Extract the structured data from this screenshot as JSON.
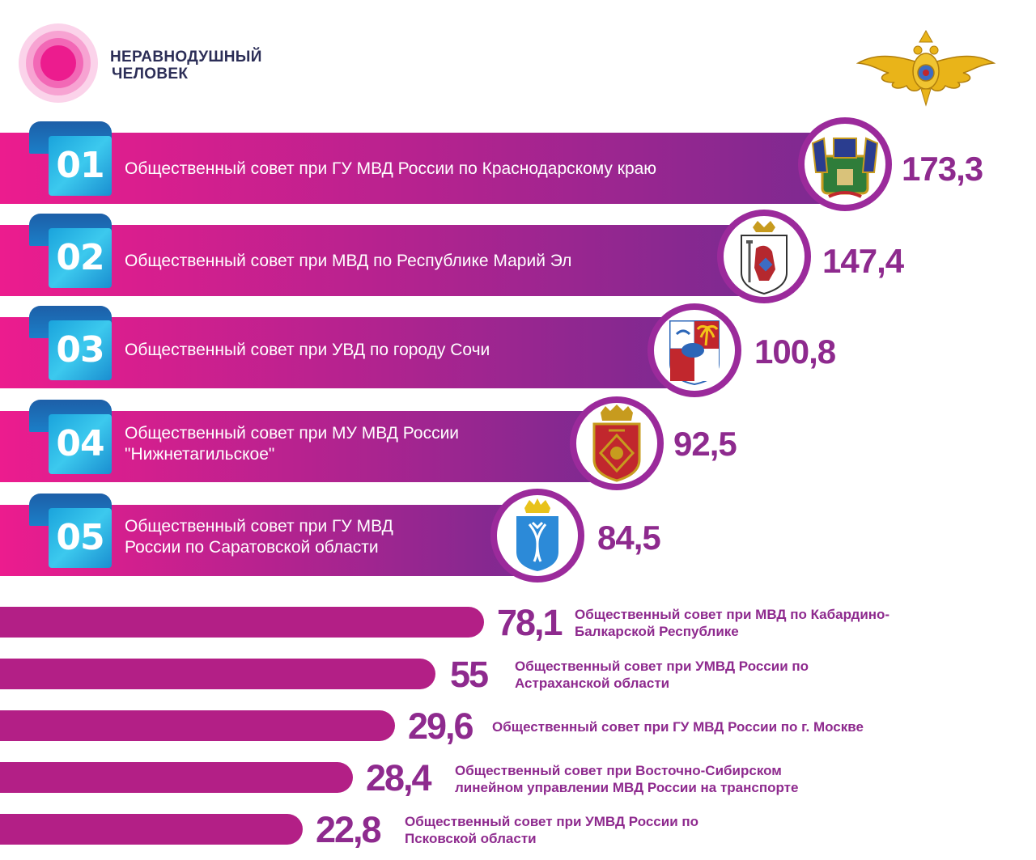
{
  "brand": {
    "line1": "НЕРАВНОДУШНЫЙ",
    "line2": "ЧЕЛОВЕК",
    "accent": "#ec1c8e"
  },
  "colors": {
    "primary_pink": "#ec1c8e",
    "primary_purple": "#8e2a8e",
    "bar_solid": "#b31f86",
    "number_box": "#2bb6e6"
  },
  "top_rows": [
    {
      "rank": "01",
      "label": "Общественный совет при ГУ МВД России по Краснодарскому краю",
      "value_text": "173,3",
      "icon": "krasnodar-coat-of-arms-icon"
    },
    {
      "rank": "02",
      "label": "Общественный совет при МВД по Республике Марий Эл",
      "value_text": "147,4",
      "icon": "mari-el-coat-of-arms-icon"
    },
    {
      "rank": "03",
      "label": "Общественный совет при УВД по городу Сочи",
      "value_text": "100,8",
      "icon": "sochi-coat-of-arms-icon"
    },
    {
      "rank": "04",
      "label_line1": "Общественный совет при МУ МВД России",
      "label_line2": "\"Нижнетагильское\"",
      "value_text": "92,5",
      "icon": "nizhny-tagil-coat-of-arms-icon"
    },
    {
      "rank": "05",
      "label_line1": "Общественный совет при ГУ МВД",
      "label_line2": "России по Саратовской области",
      "value_text": "84,5",
      "icon": "saratov-coat-of-arms-icon"
    }
  ],
  "bottom_rows": [
    {
      "value_text": "78,1",
      "label_line1": "Общественный совет при МВД по Кабардино-",
      "label_line2": "Балкарской Республике"
    },
    {
      "value_text": "55",
      "label_line1": "Общественный совет при УМВД России по",
      "label_line2": "Астраханской области"
    },
    {
      "value_text": "29,6",
      "label_line1": "Общественный совет при ГУ МВД России по г. Москве",
      "label_line2": ""
    },
    {
      "value_text": "28,4",
      "label_line1": "Общественный совет при Восточно-Сибирском",
      "label_line2": "линейном управлении МВД России на транспорте"
    },
    {
      "value_text": "22,8",
      "label_line1": "Общественный совет при УМВД России по",
      "label_line2": "Псковской области"
    }
  ],
  "chart_data": {
    "type": "bar",
    "orientation": "horizontal",
    "categories": [
      "Общественный совет при ГУ МВД России по Краснодарскому краю",
      "Общественный совет при МВД по Республике Марий Эл",
      "Общественный совет при УВД по городу Сочи",
      "Общественный совет при МУ МВД России \"Нижнетагильское\"",
      "Общественный совет при ГУ МВД России по Саратовской области",
      "Общественный совет при МВД по Кабардино-Балкарской Республике",
      "Общественный совет при УМВД России по Астраханской области",
      "Общественный совет при ГУ МВД России по г. Москве",
      "Общественный совет при Восточно-Сибирском линейном управлении МВД России на транспорте",
      "Общественный совет при УМВД России по Псковской области"
    ],
    "values": [
      173.3,
      147.4,
      100.8,
      92.5,
      84.5,
      78.1,
      55,
      29.6,
      28.4,
      22.8
    ],
    "grid": false
  }
}
